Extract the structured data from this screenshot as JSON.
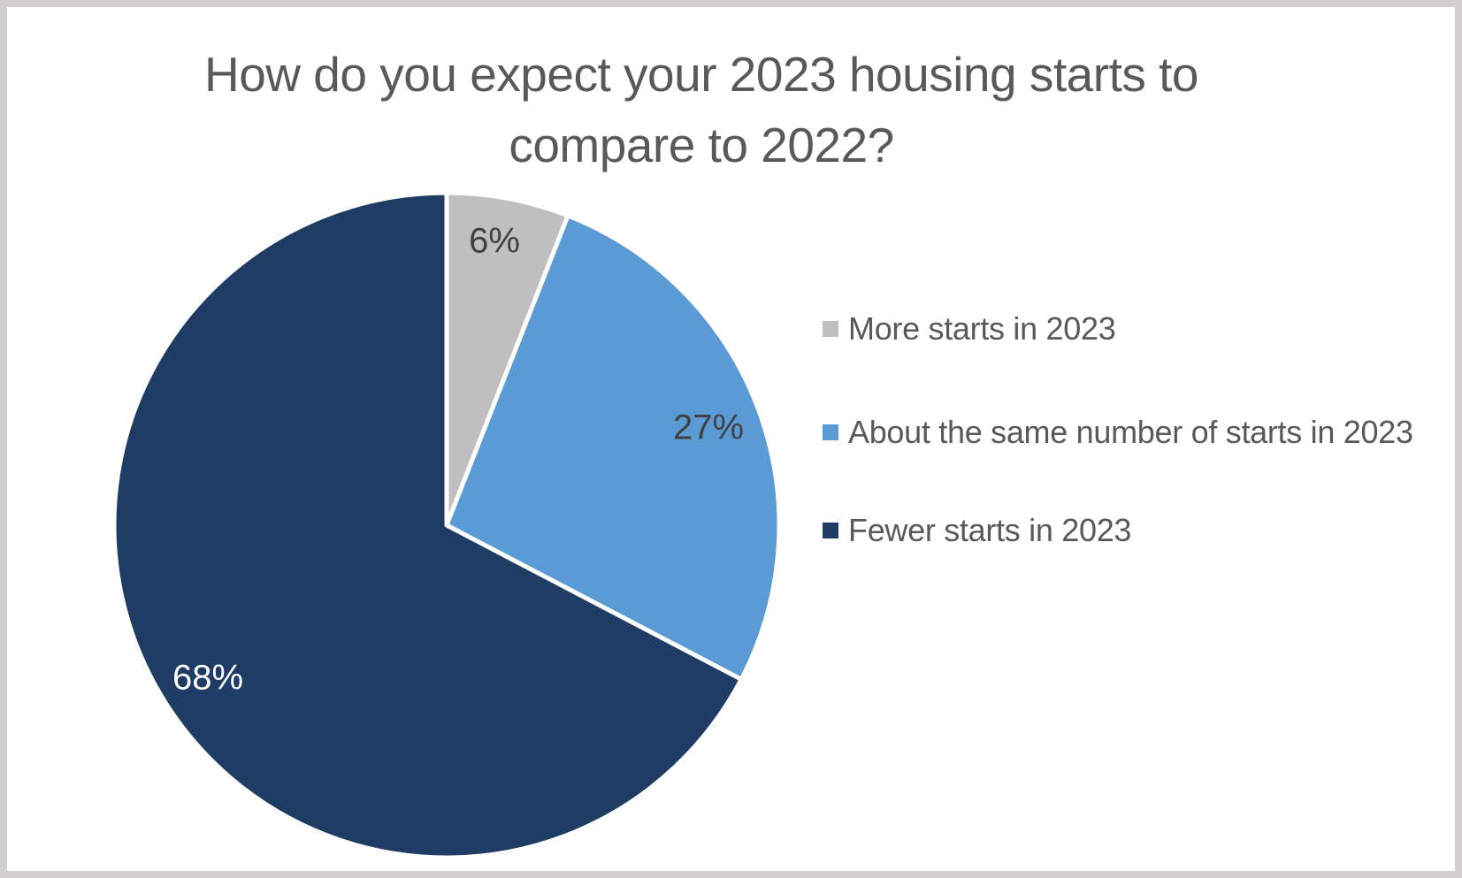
{
  "frame": {
    "background": "#FFFFFF",
    "border_color": "#D2CFCF"
  },
  "title_lines": [
    "How do you expect your 2023 housing starts to",
    "compare to 2022?"
  ],
  "title_color": "#595959",
  "chart_data": {
    "type": "pie",
    "title": "How do you expect your 2023 housing starts to compare to 2022?",
    "categories": [
      "More starts in 2023",
      "About the same number of starts in 2023",
      "Fewer starts in 2023"
    ],
    "values": [
      6,
      27,
      68
    ],
    "value_unit": "percent",
    "data_labels": [
      "6%",
      "27%",
      "68%"
    ],
    "data_label_colors": [
      "#404040",
      "#404040",
      "#FFFFFF"
    ],
    "slice_colors": [
      "#BFBFBF",
      "#5B9BD5",
      "#1F3C64"
    ],
    "slice_border_color": "#FFFFFF",
    "start_angle": "top",
    "direction": "clockwise",
    "legend_position": "right",
    "grid": false
  },
  "legend": {
    "text_color": "#595959",
    "items": [
      {
        "label": "More starts in 2023",
        "color": "#BFBFBF"
      },
      {
        "label": "About the same number of starts in 2023",
        "color": "#5B9BD5"
      },
      {
        "label": "Fewer starts in 2023",
        "color": "#1F3C64"
      }
    ]
  }
}
